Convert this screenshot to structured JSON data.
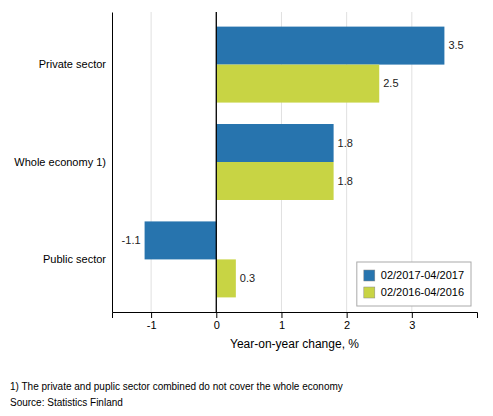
{
  "chart_data": {
    "type": "bar",
    "orientation": "horizontal",
    "categories": [
      "Public sector",
      "Whole economy 1)",
      "Private sector"
    ],
    "series": [
      {
        "name": "02/2017-04/2017",
        "color": "#2774AE",
        "values": [
          -1.1,
          1.8,
          3.5
        ]
      },
      {
        "name": "02/2016-04/2016",
        "color": "#C8D444",
        "values": [
          0.3,
          1.8,
          2.5
        ]
      }
    ],
    "xlabel": "Year-on-year change, %",
    "xlim": [
      -1.6,
      4.0
    ],
    "xticks": [
      -1,
      0,
      1,
      2,
      3
    ],
    "grid": true,
    "legend": "lower right",
    "data_labels": true,
    "annotations": [
      "1) The private and puplic sector combined do not cover the whole economy",
      "Source: Statistics Finland"
    ]
  }
}
